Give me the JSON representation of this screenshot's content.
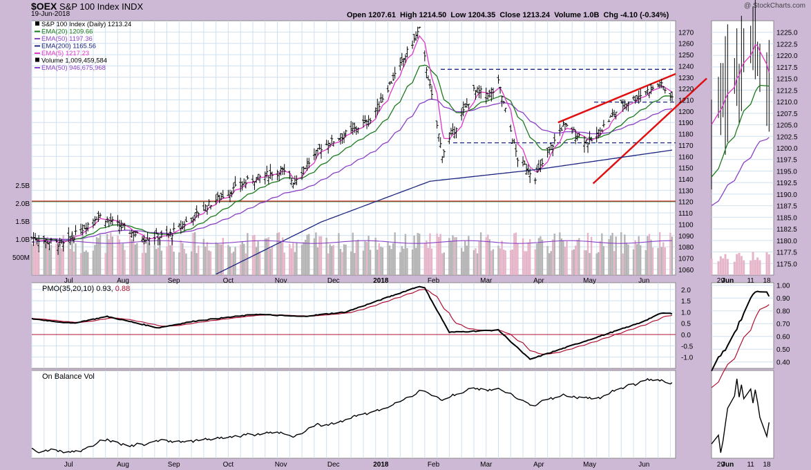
{
  "header": {
    "symbol": "$OEX",
    "name": "S&P 100 Index INDX",
    "date": "19-Jun-2018",
    "watermark": "@ StockCharts.com",
    "ohlc": "Open 1207.61  High 1214.50  Low 1204.35  Close 1213.24  Volume 1.0B  Chg -4.10 (-0.34%)"
  },
  "legend": [
    {
      "label": "S&P 100 Index (Daily) 1213.24",
      "color": "#000000",
      "kind": "bar"
    },
    {
      "label": "EMA(20) 1209.66",
      "color": "#1a7a1a",
      "kind": "line"
    },
    {
      "label": "EMA(50) 1197.36",
      "color": "#8a3fc7",
      "kind": "line"
    },
    {
      "label": "EMA(200) 1165.56",
      "color": "#1a237e",
      "kind": "line"
    },
    {
      "label": "EMA(5) 1217.23",
      "color": "#e233c9",
      "kind": "line"
    },
    {
      "label": "Volume 1,009,459,584",
      "color": "#000000",
      "kind": "box"
    },
    {
      "label": "EMA(50) 946,675,968",
      "color": "#8a3fc7",
      "kind": "line"
    }
  ],
  "pmo_label": {
    "text": "PMO(35,20,10) 0.93,",
    "signal": "0.88",
    "signal_color": "#b01030"
  },
  "obv_label": "On Balance Vol",
  "colors": {
    "price": "#000000",
    "ema20": "#1a7a1a",
    "ema50": "#8a3fc7",
    "ema200": "#1a237e",
    "ema5": "#e233c9",
    "volume_up": "#b4b4b4",
    "volume_down": "#e6b4c8",
    "trend": "#e01010",
    "green_level": "#2e9e4e",
    "red_level": "#cc2222",
    "grid": "#cfe0ef"
  },
  "chart_data": {
    "type": "line",
    "price_axis": {
      "ylim": [
        1055,
        1280
      ],
      "ticks": [
        1060,
        1070,
        1080,
        1090,
        1100,
        1110,
        1120,
        1130,
        1140,
        1150,
        1160,
        1170,
        1180,
        1190,
        1200,
        1210,
        1220,
        1230,
        1240,
        1250,
        1260,
        1270
      ]
    },
    "volume_axis": {
      "labels": [
        "500M",
        "1.0B",
        "1.5B",
        "2.0B",
        "2.5B"
      ],
      "values": [
        0.5,
        1.0,
        1.5,
        2.0,
        2.5
      ]
    },
    "x_labels": [
      "Jul",
      "Aug",
      "Sep",
      "Oct",
      "Nov",
      "Dec",
      "2018",
      "Feb",
      "Mar",
      "Apr",
      "May",
      "Jun"
    ],
    "close_keypoints": [
      [
        "2017-06-19",
        1088
      ],
      [
        "2017-07-07",
        1082
      ],
      [
        "2017-07-27",
        1108
      ],
      [
        "2017-08-21",
        1088
      ],
      [
        "2017-09-05",
        1090
      ],
      [
        "2017-09-20",
        1108
      ],
      [
        "2017-10-02",
        1122
      ],
      [
        "2017-10-20",
        1138
      ],
      [
        "2017-11-08",
        1148
      ],
      [
        "2017-11-15",
        1138
      ],
      [
        "2017-12-01",
        1168
      ],
      [
        "2017-12-29",
        1192
      ],
      [
        "2018-01-26",
        1272
      ],
      [
        "2018-02-08",
        1162
      ],
      [
        "2018-02-26",
        1218
      ],
      [
        "2018-03-08",
        1215
      ],
      [
        "2018-03-12",
        1225
      ],
      [
        "2018-03-23",
        1158
      ],
      [
        "2018-04-02",
        1142
      ],
      [
        "2018-04-18",
        1188
      ],
      [
        "2018-05-03",
        1172
      ],
      [
        "2018-05-21",
        1205
      ],
      [
        "2018-06-12",
        1224
      ],
      [
        "2018-06-19",
        1213
      ]
    ],
    "ema200_keypoints": [
      [
        "2017-10-01",
        1055
      ],
      [
        "2017-12-01",
        1102
      ],
      [
        "2018-02-01",
        1138
      ],
      [
        "2018-04-01",
        1148
      ],
      [
        "2018-06-19",
        1165.56
      ]
    ],
    "ema50_last": 1197.36,
    "ema20_last": 1209.66,
    "ema5_last": 1217.23,
    "horizontal_lines": [
      {
        "value": 1237,
        "style": "dashed",
        "color": "#1a237e"
      },
      {
        "value": 1208,
        "style": "dashed",
        "color": "#1a237e"
      },
      {
        "value": 1172,
        "style": "dashed",
        "color": "#1a237e"
      },
      {
        "value": 1120,
        "style": "solid",
        "color": "#2e9e4e"
      }
    ],
    "pmo": {
      "ylim": [
        -1.5,
        2.3
      ],
      "ticks": [
        -1.0,
        -0.5,
        0.0,
        0.5,
        1.0,
        1.5,
        2.0
      ],
      "keypoints": [
        [
          "2017-06-19",
          0.7
        ],
        [
          "2017-07-12",
          0.5
        ],
        [
          "2017-08-01",
          0.8
        ],
        [
          "2017-08-30",
          0.3
        ],
        [
          "2017-09-20",
          0.6
        ],
        [
          "2017-10-25",
          0.9
        ],
        [
          "2017-11-20",
          0.8
        ],
        [
          "2017-12-15",
          1.0
        ],
        [
          "2018-01-28",
          2.2
        ],
        [
          "2018-02-12",
          0.1
        ],
        [
          "2018-03-12",
          0.2
        ],
        [
          "2018-03-30",
          -1.1
        ],
        [
          "2018-04-30",
          -0.3
        ],
        [
          "2018-05-31",
          0.5
        ],
        [
          "2018-06-13",
          0.95
        ],
        [
          "2018-06-19",
          0.93
        ]
      ],
      "signal_last": 0.88
    },
    "obv": {
      "trend": "rising"
    },
    "detail": {
      "x_labels": [
        "29",
        "Jun",
        "11",
        "18"
      ],
      "price_ticks": [
        1175.0,
        1177.5,
        1180.0,
        1182.5,
        1185.0,
        1187.5,
        1190.0,
        1192.5,
        1195.0,
        1197.5,
        1200.0,
        1202.5,
        1205.0,
        1207.5,
        1210.0,
        1212.5,
        1215.0,
        1217.5,
        1220.0,
        1222.5,
        1225.0
      ],
      "pmo_ticks": [
        0.4,
        0.5,
        0.6,
        0.7,
        0.8,
        0.9,
        1.0
      ]
    }
  }
}
